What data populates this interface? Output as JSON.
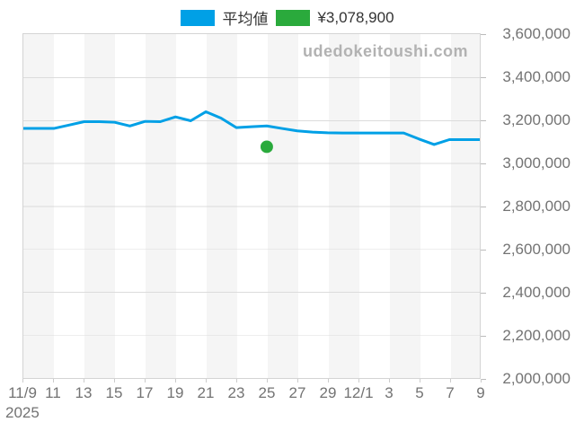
{
  "legend": {
    "average": {
      "label": "平均値",
      "color": "#00a0e6"
    },
    "point": {
      "label": "¥3,078,900",
      "color": "#2aaa3c"
    }
  },
  "watermark": "udedokeitoushi.com",
  "chart_data": {
    "type": "line",
    "title": "",
    "legend_position": "top-center",
    "grid": "horizontal",
    "background_bands": "alternating 2-day vertical stripes",
    "x_year_label": "2025",
    "x_tick_labels": [
      "11/9",
      "11",
      "13",
      "15",
      "17",
      "19",
      "21",
      "23",
      "25",
      "27",
      "29",
      "12/1",
      "3",
      "5",
      "7",
      "9"
    ],
    "x_tick_days": [
      0,
      2,
      4,
      6,
      8,
      10,
      12,
      14,
      16,
      18,
      20,
      22,
      24,
      26,
      28,
      30
    ],
    "ylim": [
      2000000,
      3600000
    ],
    "y_tick_step": 200000,
    "series": [
      {
        "name": "平均値",
        "color": "#00a0e6",
        "dates": [
          "11/9",
          "11/10",
          "11/11",
          "11/12",
          "11/13",
          "11/14",
          "11/15",
          "11/16",
          "11/17",
          "11/18",
          "11/19",
          "11/20",
          "11/21",
          "11/22",
          "11/23",
          "11/24",
          "11/25",
          "11/26",
          "11/27",
          "11/28",
          "11/29",
          "11/30",
          "12/1",
          "12/2",
          "12/3",
          "12/4",
          "12/5",
          "12/6",
          "12/7",
          "12/8",
          "12/9"
        ],
        "values": [
          3164000,
          3164000,
          3164000,
          3180000,
          3196000,
          3196000,
          3193000,
          3176000,
          3197000,
          3196000,
          3218000,
          3200000,
          3242000,
          3212000,
          3168000,
          3172000,
          3176000,
          3164000,
          3153000,
          3147000,
          3144000,
          3143000,
          3143000,
          3143000,
          3143000,
          3143000,
          3115000,
          3089000,
          3112000,
          3112000,
          3112000
        ]
      }
    ],
    "markers": [
      {
        "name": "sale-price",
        "label": "¥3,078,900",
        "date": "11/25",
        "day_index": 16,
        "value": 3078900,
        "color": "#2aaa3c"
      }
    ]
  }
}
